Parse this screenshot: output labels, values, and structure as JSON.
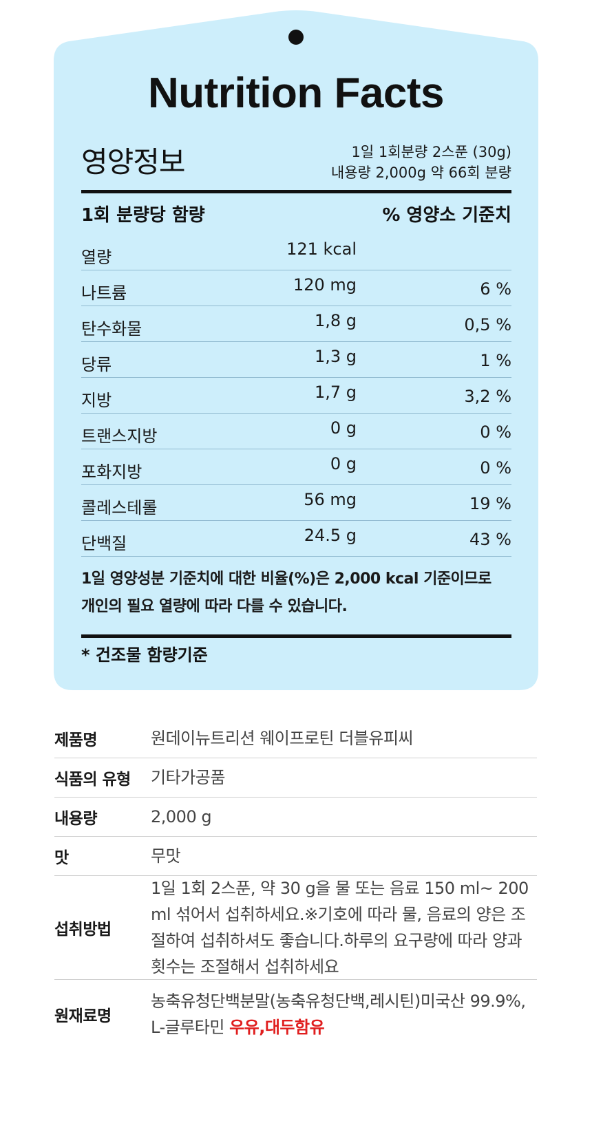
{
  "colors": {
    "card_bg": "#cdeefb",
    "rule": "#111111",
    "allergen": "#e01e1e"
  },
  "nutrition": {
    "title": "Nutrition Facts",
    "korean_title": "영양정보",
    "serving_line1": "1일 1회분량 2스푼 (30g)",
    "serving_line2": "내용량 2,000g 약 66회 분량",
    "header_left": "1회 분량당 함량",
    "header_right": "% 영양소 기준치",
    "rows": [
      {
        "label": "열량",
        "amount": "121 kcal",
        "pct": ""
      },
      {
        "label": "나트륨",
        "amount": "120 mg",
        "pct": "6 %"
      },
      {
        "label": "탄수화물",
        "amount": "1,8 g",
        "pct": "0,5 %"
      },
      {
        "label": "당류",
        "amount": "1,3 g",
        "pct": "1 %"
      },
      {
        "label": "지방",
        "amount": "1,7 g",
        "pct": "3,2 %"
      },
      {
        "label": "트랜스지방",
        "amount": "0 g",
        "pct": "0 %"
      },
      {
        "label": "포화지방",
        "amount": "0 g",
        "pct": "0 %"
      },
      {
        "label": "콜레스테롤",
        "amount": "56 mg",
        "pct": "19 %"
      },
      {
        "label": "단백질",
        "amount": "24.5 g",
        "pct": "43 %"
      }
    ],
    "footnote_line1": "1일 영양성분 기준치에 대한 비율(%)은 2,000 kcal 기준이므로",
    "footnote_line2": "개인의 필요 열량에 따라 다를 수 있습니다.",
    "dry_note": "* 건조물 함량기준"
  },
  "product_info": {
    "rows": [
      {
        "label": "제품명",
        "value": "원데이뉴트리션 웨이프로틴 더블유피씨"
      },
      {
        "label": "식품의 유형",
        "value": "기타가공품"
      },
      {
        "label": "내용량",
        "value": "2,000 g"
      },
      {
        "label": "맛",
        "value": "무맛"
      },
      {
        "label": "섭취방법",
        "value": "1일 1회 2스푼, 약 30 g을 물 또는 음료 150 ml~ 200 ml 섞어서 섭취하세요.※기호에 따라 물, 음료의 양은 조절하여 섭취하셔도 좋습니다.하루의 요구량에 따라 양과 횟수는 조절해서 섭취하세요"
      },
      {
        "label": "원재료명",
        "value": "농축유청단백분말(농축유청단백,레시틴)미국산 99.9%, L-글루타민 ",
        "allergen": "우유,대두함유"
      }
    ]
  }
}
